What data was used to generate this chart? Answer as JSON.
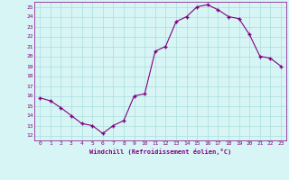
{
  "x": [
    0,
    1,
    2,
    3,
    4,
    5,
    6,
    7,
    8,
    9,
    10,
    11,
    12,
    13,
    14,
    15,
    16,
    17,
    18,
    19,
    20,
    21,
    22,
    23
  ],
  "y": [
    15.8,
    15.5,
    14.8,
    14.0,
    13.2,
    13.0,
    12.2,
    13.0,
    13.5,
    16.0,
    16.2,
    20.5,
    21.0,
    23.5,
    24.0,
    25.0,
    25.2,
    24.7,
    24.0,
    23.8,
    22.2,
    20.0,
    19.8,
    19.0
  ],
  "line_color": "#800080",
  "marker": "+",
  "marker_color": "#800080",
  "bg_color": "#d8f5f5",
  "grid_color": "#aadddd",
  "xlabel": "Windchill (Refroidissement éolien,°C)",
  "xlabel_color": "#800080",
  "tick_color": "#800080",
  "yticks": [
    12,
    13,
    14,
    15,
    16,
    17,
    18,
    19,
    20,
    21,
    22,
    23,
    24,
    25
  ],
  "xticks": [
    0,
    1,
    2,
    3,
    4,
    5,
    6,
    7,
    8,
    9,
    10,
    11,
    12,
    13,
    14,
    15,
    16,
    17,
    18,
    19,
    20,
    21,
    22,
    23
  ],
  "ylim": [
    11.5,
    25.5
  ],
  "xlim": [
    -0.5,
    23.5
  ],
  "figsize": [
    3.2,
    2.0
  ],
  "dpi": 100
}
